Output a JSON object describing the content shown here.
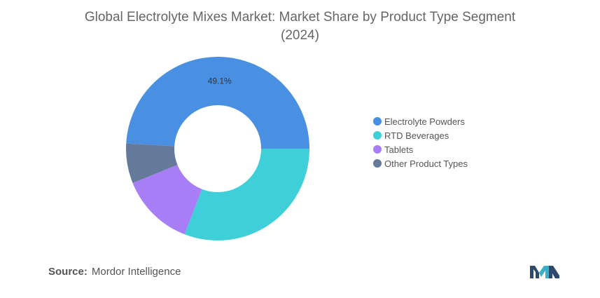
{
  "title_line1": "Global Electrolyte Mixes Market: Market Share by Product Type Segment",
  "title_line2": "(2024)",
  "source_label": "Source:",
  "source_value": "Mordor Intelligence",
  "logo_icon": "mordor-intelligence-logo-icon",
  "chart_data": {
    "type": "pie",
    "variant": "donut",
    "title": "Global Electrolyte Mixes Market: Market Share by Product Type Segment (2024)",
    "categories": [
      "Electrolyte Powders",
      "RTD Beverages",
      "Tablets",
      "Other Product Types"
    ],
    "values": [
      49.1,
      30.9,
      13.0,
      7.0
    ],
    "units": "%",
    "colors": [
      "#4a90e2",
      "#3ecfd9",
      "#a77ef5",
      "#65799a"
    ],
    "data_labels": [
      "49.1%",
      "",
      "",
      ""
    ],
    "legend_position": "right"
  }
}
